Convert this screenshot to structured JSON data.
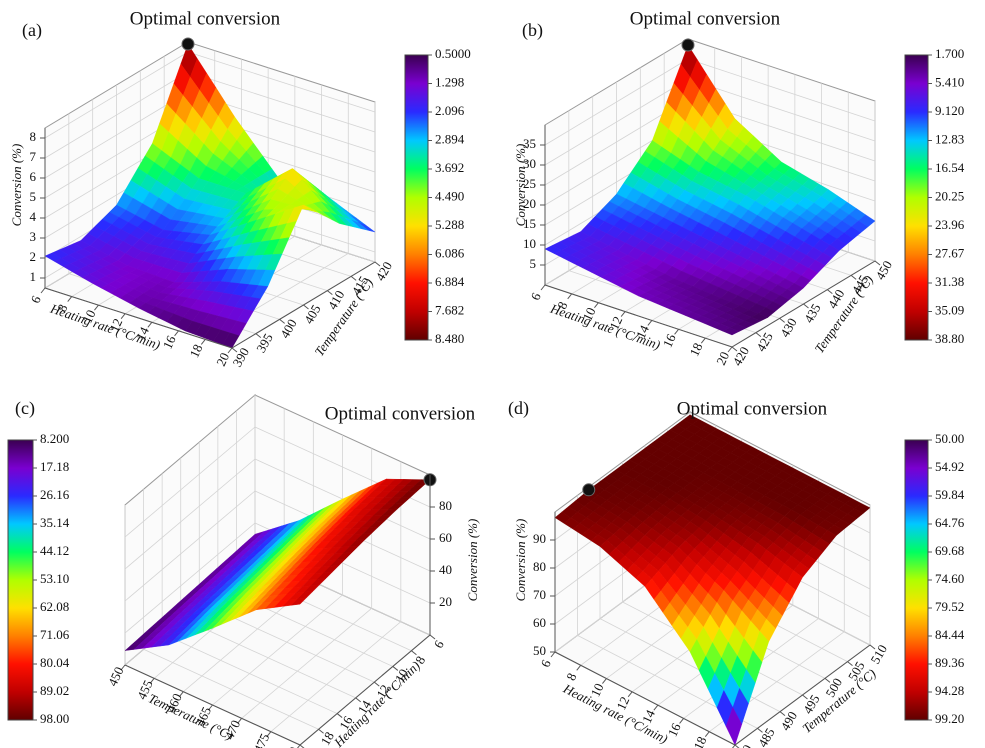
{
  "chart_data": [
    {
      "type": "surface3d",
      "panel_label": "(a)",
      "title": "Optimal conversion",
      "x_label": "Heating rate (°C/min)",
      "y_label": "Temperature (°C)",
      "z_label": "Conversion (%)",
      "x": [
        6,
        9.5,
        13,
        16.5,
        20
      ],
      "y": [
        390,
        397.5,
        405,
        412.5,
        420
      ],
      "z": [
        [
          2.1,
          1.8,
          2.5,
          4.5,
          8.4
        ],
        [
          1.5,
          1.3,
          2.0,
          3.5,
          5.5
        ],
        [
          1.0,
          1.2,
          2.5,
          3.5,
          3.0
        ],
        [
          0.6,
          2.0,
          4.0,
          5.5,
          3.0
        ],
        [
          0.5,
          2.5,
          5.5,
          3.5,
          2.0
        ]
      ],
      "xlim": [
        6,
        20
      ],
      "ylim": [
        390,
        420
      ],
      "zlim": [
        0.5,
        8.5
      ],
      "xticks": [
        6,
        8,
        10,
        12,
        14,
        16,
        18,
        20
      ],
      "yticks": [
        390,
        395,
        400,
        405,
        410,
        415,
        420
      ],
      "zticks": [
        1,
        2,
        3,
        4,
        5,
        6,
        7,
        8
      ],
      "clim": [
        0.5,
        8.48
      ],
      "colorbar_ticks": [
        {
          "value": 0.5,
          "label": "0.5000"
        },
        1.298,
        2.096,
        2.894,
        3.692,
        {
          "value": 4.49,
          "label": "4.490"
        },
        5.288,
        6.086,
        6.884,
        7.682,
        {
          "value": 8.48,
          "label": "8.480"
        }
      ],
      "colors": [
        "#3a0050",
        "#7a00d0",
        "#2a2aff",
        "#00c8ff",
        "#00ff60",
        "#b0ff00",
        "#ffe000",
        "#ff8000",
        "#ff1000",
        "#c00000",
        "#600000"
      ]
    },
    {
      "type": "surface3d",
      "panel_label": "(b)",
      "title": "Optimal conversion",
      "x_label": "Heating rate (°C/min)",
      "y_label": "Temperature (°C)",
      "z_label": "Conversion (%)",
      "x": [
        6,
        9.5,
        13,
        16.5,
        20
      ],
      "y": [
        420,
        427.5,
        435,
        442.5,
        450
      ],
      "z": [
        [
          9,
          8,
          12,
          20,
          38.5
        ],
        [
          7,
          6,
          10,
          16,
          24
        ],
        [
          5,
          4,
          8,
          14,
          17
        ],
        [
          4,
          3,
          6,
          11,
          14
        ],
        [
          3,
          2,
          4,
          8,
          10
        ]
      ],
      "xlim": [
        6,
        20
      ],
      "ylim": [
        420,
        450
      ],
      "zlim": [
        0,
        40
      ],
      "xticks": [
        6,
        8,
        10,
        12,
        14,
        16,
        18,
        20
      ],
      "yticks": [
        420,
        425,
        430,
        435,
        440,
        445,
        450
      ],
      "zticks": [
        5,
        10,
        15,
        20,
        25,
        30,
        35
      ],
      "clim": [
        1.7,
        38.8
      ],
      "colorbar_ticks": [
        {
          "value": 1.7,
          "label": "1.700"
        },
        {
          "value": 5.41,
          "label": "5.410"
        },
        {
          "value": 9.12,
          "label": "9.120"
        },
        12.83,
        16.54,
        20.25,
        23.96,
        27.67,
        31.38,
        35.09,
        {
          "value": 38.8,
          "label": "38.80"
        }
      ],
      "colors": [
        "#3a0050",
        "#7a00d0",
        "#2a2aff",
        "#00c8ff",
        "#00ff60",
        "#b0ff00",
        "#ffe000",
        "#ff8000",
        "#ff1000",
        "#c00000",
        "#600000"
      ]
    },
    {
      "type": "surface3d",
      "panel_label": "(c)",
      "title": "Optimal conversion",
      "x_label": "Temperature (°C)",
      "y_label": "Heating rate (°C/min)",
      "z_label": "Conversion (%)",
      "x": [
        450,
        457.5,
        465,
        472.5,
        480
      ],
      "y": [
        20,
        16.5,
        13,
        9.5,
        6
      ],
      "z": [
        [
          9,
          10,
          11,
          12,
          13
        ],
        [
          25,
          28,
          30,
          32,
          34
        ],
        [
          48,
          52,
          55,
          58,
          60
        ],
        [
          72,
          76,
          80,
          83,
          85
        ],
        [
          88,
          91,
          94,
          96,
          97
        ]
      ],
      "xlim": [
        450,
        480
      ],
      "ylim": [
        20,
        6
      ],
      "zlim": [
        0,
        100
      ],
      "xticks": [
        450,
        455,
        460,
        465,
        470,
        475,
        480
      ],
      "yticks": [
        20,
        18,
        16,
        14,
        12,
        10,
        8,
        6
      ],
      "zticks": [
        20,
        40,
        60,
        80
      ],
      "clim": [
        8.2,
        98
      ],
      "colorbar_ticks": [
        {
          "value": 8.2,
          "label": "8.200"
        },
        17.18,
        26.16,
        35.14,
        44.12,
        {
          "value": 53.1,
          "label": "53.10"
        },
        62.08,
        71.06,
        80.04,
        89.02,
        {
          "value": 98,
          "label": "98.00"
        }
      ],
      "colors": [
        "#3a0050",
        "#7a00d0",
        "#2a2aff",
        "#00c8ff",
        "#00ff60",
        "#b0ff00",
        "#ffe000",
        "#ff8000",
        "#ff1000",
        "#c00000",
        "#600000"
      ]
    },
    {
      "type": "surface3d",
      "panel_label": "(d)",
      "title": "Optimal conversion",
      "x_label": "Heating rate (°C/min)",
      "y_label": "Temperature (°C)",
      "z_label": "Conversion (%)",
      "x": [
        6,
        9.5,
        13,
        16.5,
        20
      ],
      "y": [
        480,
        487.5,
        495,
        502.5,
        510
      ],
      "z": [
        [
          98,
          99,
          99,
          99,
          99
        ],
        [
          96,
          98,
          99,
          99,
          99
        ],
        [
          90,
          95,
          98,
          99,
          99
        ],
        [
          75,
          88,
          96,
          99,
          99
        ],
        [
          50,
          78,
          92,
          98,
          99
        ]
      ],
      "xlim": [
        6,
        20
      ],
      "ylim": [
        480,
        510
      ],
      "zlim": [
        50,
        100
      ],
      "xticks": [
        6,
        8,
        10,
        12,
        14,
        16,
        18,
        20
      ],
      "yticks": [
        480,
        485,
        490,
        495,
        500,
        505,
        510
      ],
      "zticks": [
        50,
        60,
        70,
        80,
        90
      ],
      "clim": [
        50,
        99.2
      ],
      "colorbar_ticks": [
        {
          "value": 50,
          "label": "50.00"
        },
        54.92,
        59.84,
        64.76,
        69.68,
        {
          "value": 74.6,
          "label": "74.60"
        },
        79.52,
        84.44,
        89.36,
        94.28,
        {
          "value": 99.2,
          "label": "99.20"
        }
      ],
      "colors": [
        "#3a0050",
        "#7a00d0",
        "#2a2aff",
        "#00c8ff",
        "#00ff60",
        "#b0ff00",
        "#ffe000",
        "#ff8000",
        "#ff1000",
        "#c00000",
        "#600000"
      ]
    }
  ]
}
